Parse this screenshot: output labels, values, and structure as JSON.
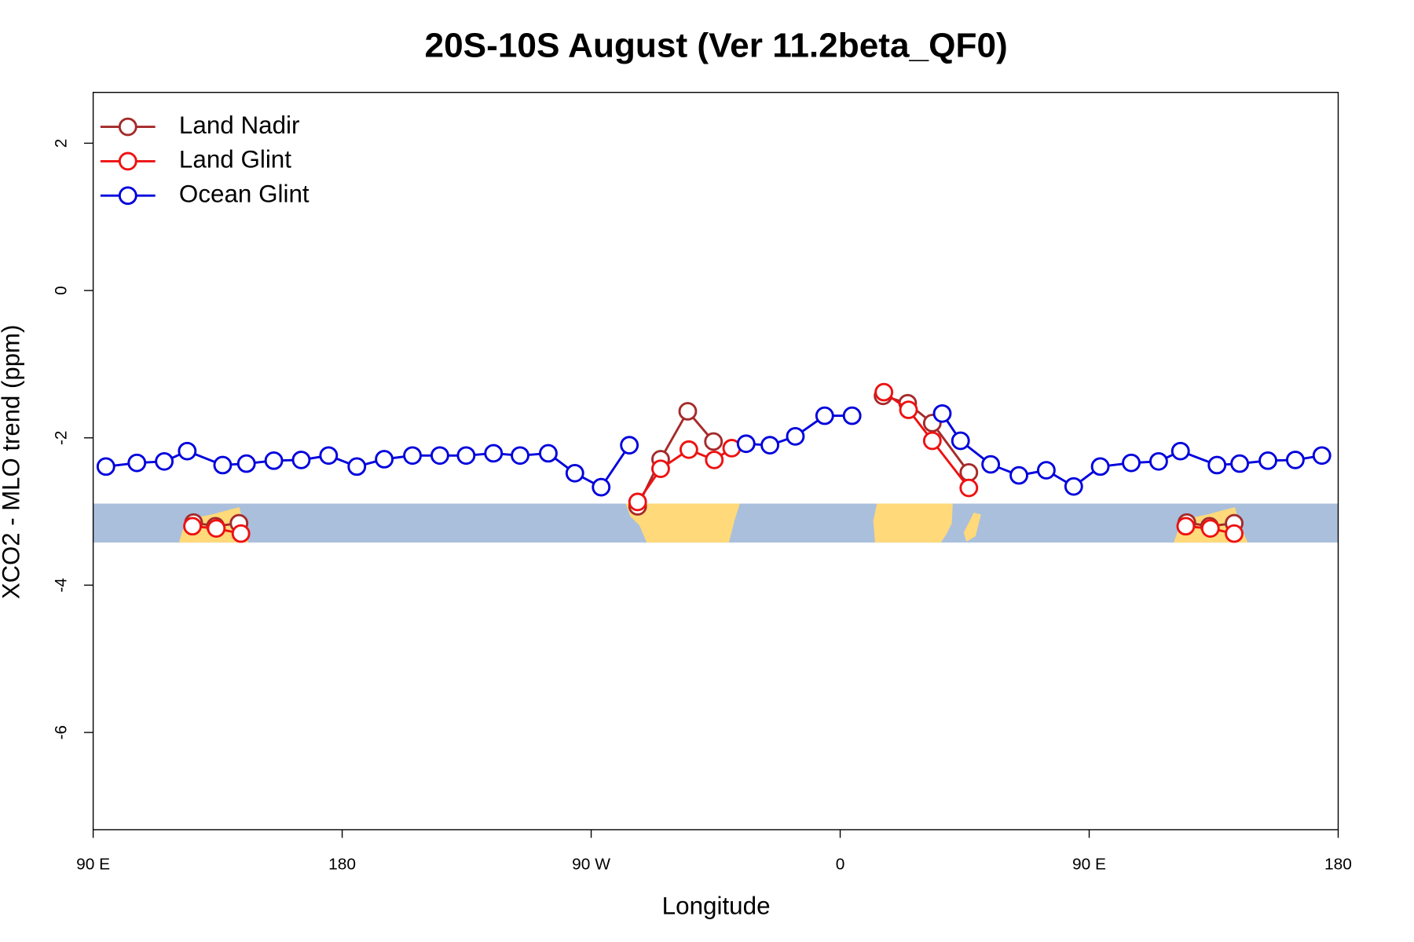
{
  "chart_data": {
    "type": "line",
    "title": "20S-10S August (Ver 11.2beta_QF0)",
    "xlabel": "Longitude",
    "ylabel": "XCO2 - MLO trend (ppm)",
    "legend": "topleft",
    "xlim": [
      90,
      540
    ],
    "ylim": [
      -7.32,
      2.69
    ],
    "xticks": [
      {
        "value": 90,
        "label": "90 E"
      },
      180,
      {
        "value": 270,
        "label": "90 W"
      },
      {
        "value": 360,
        "label": "0"
      },
      {
        "value": 450,
        "label": "90 E"
      },
      {
        "value": 540,
        "label": "180"
      }
    ],
    "yticks": [
      -6,
      -4,
      -2,
      0,
      2
    ],
    "series": [
      {
        "name": "Land Nadir",
        "color": "#a52a2a",
        "x": [
          126.3,
          134.2,
          142.7,
          null,
          286.8,
          295.1,
          304.9,
          314.2,
          null,
          375.5,
          384.4,
          393.3,
          406.5,
          null,
          485.3,
          493.5,
          502.4
        ],
        "values": [
          -3.15,
          -3.2,
          -3.16,
          null,
          -2.93,
          -2.29,
          -1.64,
          -2.05,
          null,
          -1.43,
          -1.53,
          -1.8,
          -2.47,
          null,
          -3.15,
          -3.2,
          -3.16
        ]
      },
      {
        "name": "Land Glint",
        "color": "#ee1111",
        "x": [
          125.9,
          134.5,
          143.4,
          null,
          286.8,
          295.1,
          305.3,
          314.5,
          320.8,
          null,
          375.8,
          384.7,
          393.3,
          406.5,
          null,
          484.9,
          493.8,
          502.4
        ],
        "values": [
          -3.2,
          -3.23,
          -3.3,
          null,
          -2.87,
          -2.42,
          -2.16,
          -2.3,
          -2.14,
          null,
          -1.38,
          -1.62,
          -2.04,
          -2.68,
          null,
          -3.2,
          -3.23,
          -3.3
        ]
      },
      {
        "name": "Ocean Glint",
        "color": "#0000dd",
        "x": [
          94.6,
          105.8,
          115.7,
          124,
          136.8,
          145.4,
          155.3,
          165.2,
          175.1,
          185.3,
          195.2,
          205.4,
          215.3,
          224.8,
          234.7,
          244.3,
          254.5,
          264.1,
          273.6,
          283.8,
          null,
          326,
          334.6,
          343.8,
          354.4,
          364.3,
          null,
          396.9,
          403.5,
          414.4,
          424.6,
          434.5,
          444.4,
          454,
          465.2,
          475.1,
          483,
          496.2,
          504.4,
          514.6,
          524.5,
          534.1
        ],
        "values": [
          -2.39,
          -2.34,
          -2.32,
          -2.18,
          -2.37,
          -2.35,
          -2.31,
          -2.3,
          -2.24,
          -2.39,
          -2.29,
          -2.24,
          -2.24,
          -2.24,
          -2.21,
          -2.24,
          -2.21,
          -2.48,
          -2.67,
          -2.1,
          null,
          -2.08,
          -2.1,
          -1.98,
          -1.7,
          -1.7,
          null,
          -1.67,
          -2.04,
          -2.36,
          -2.51,
          -2.44,
          -2.66,
          -2.39,
          -2.34,
          -2.32,
          -2.18,
          -2.37,
          -2.35,
          -2.31,
          -2.3,
          -2.24
        ]
      }
    ]
  }
}
